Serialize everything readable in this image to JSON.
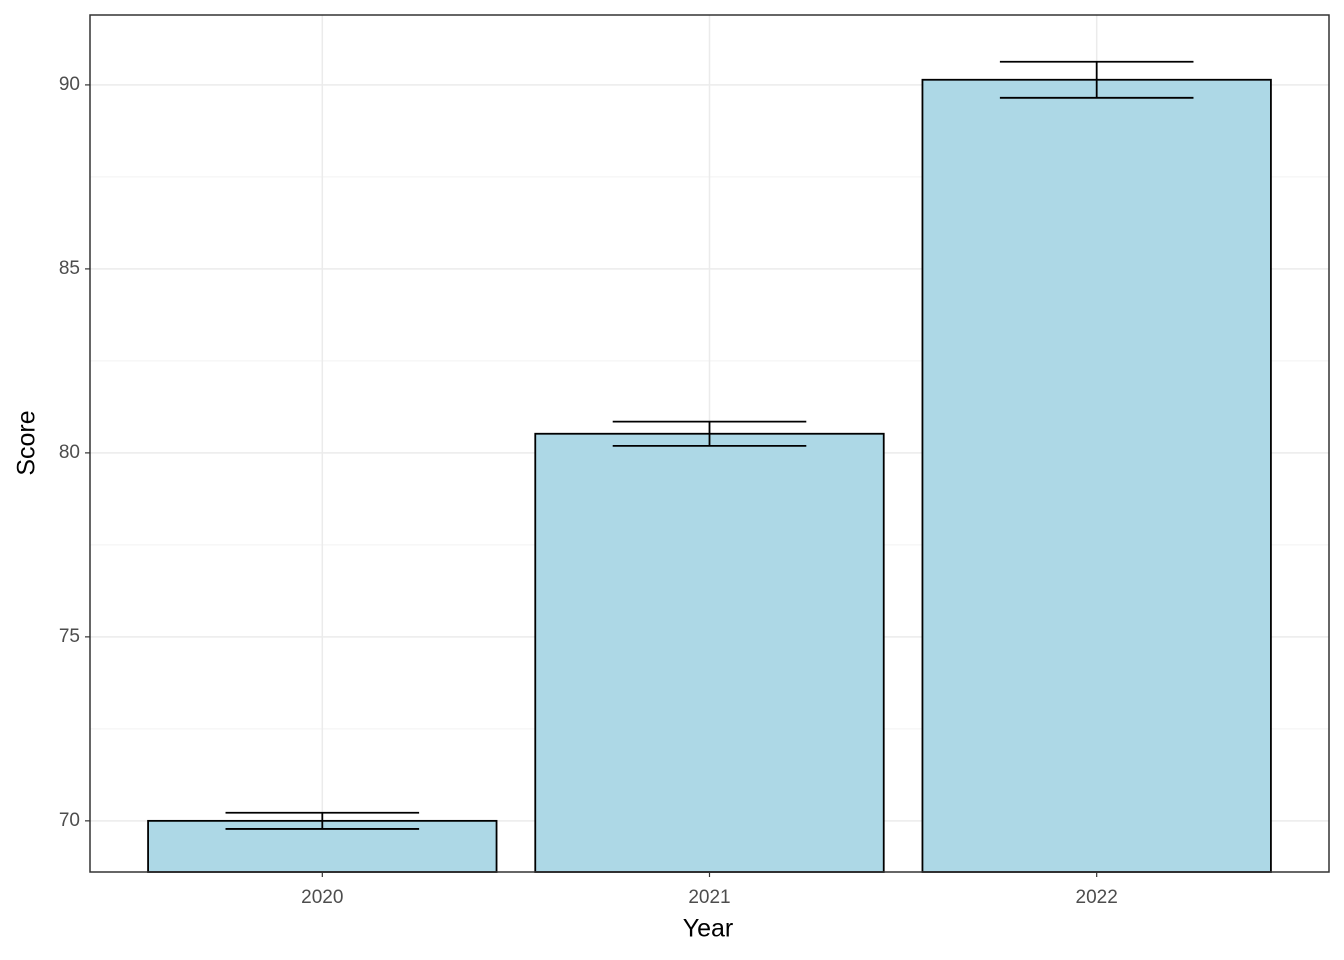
{
  "chart_data": {
    "type": "bar",
    "x_label": "Year",
    "y_label": "Score",
    "categories": [
      "2020",
      "2021",
      "2022"
    ],
    "values": [
      70.0,
      80.52,
      90.14
    ],
    "errors": [
      0.22,
      0.33,
      0.49
    ],
    "color": "#add8e6",
    "ylim": [
      68.61,
      91.9
    ],
    "yticks": [
      70,
      75,
      80,
      85,
      90
    ],
    "yticks_minor": [
      72.5,
      77.5,
      82.5,
      87.5
    ],
    "grid": true
  }
}
